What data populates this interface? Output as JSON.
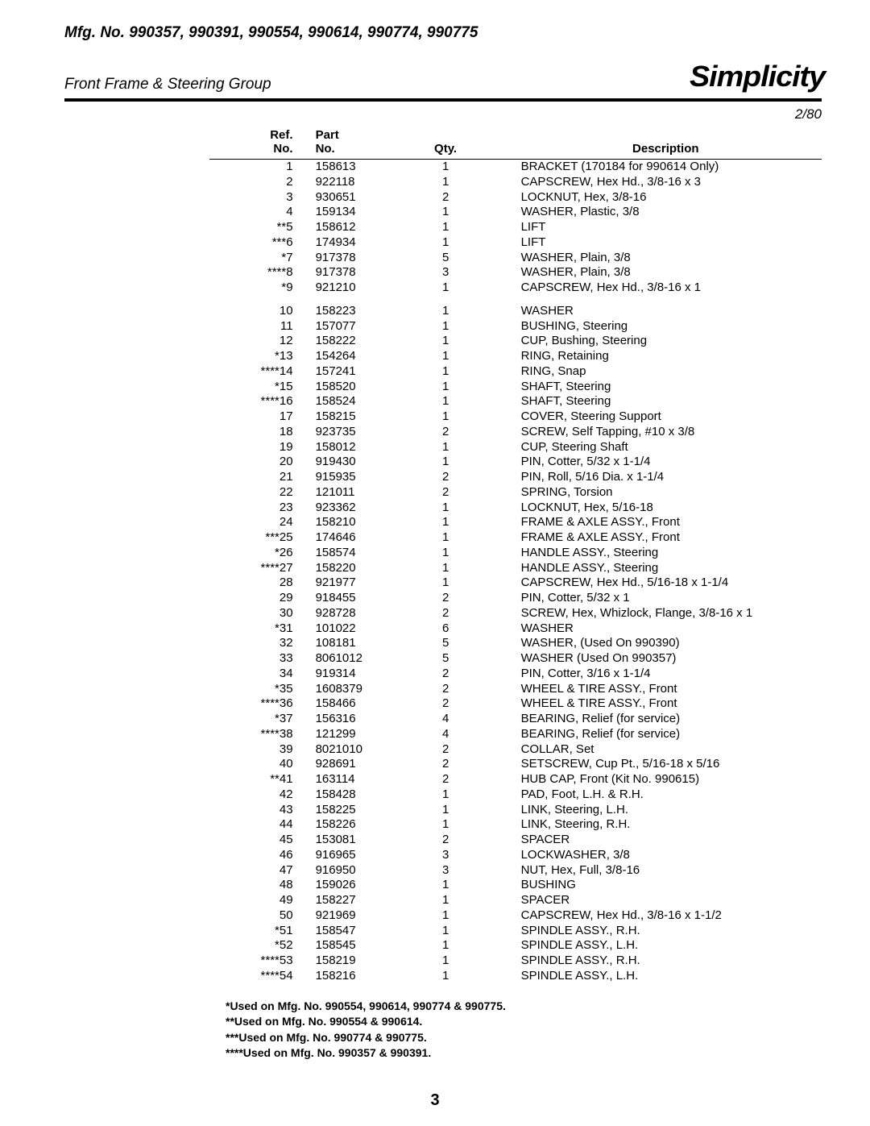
{
  "header": {
    "mfg_line": "Mfg. No. 990357, 990391, 990554, 990614, 990774, 990775",
    "group_title": "Front Frame & Steering Group",
    "brand": "Simplicity",
    "page_code": "2/80"
  },
  "table": {
    "head": {
      "ref1": "Ref.",
      "ref2": "No.",
      "part1": "Part",
      "part2": "No.",
      "qty": "Qty.",
      "desc": "Description"
    },
    "rows": [
      {
        "ref": "1",
        "part": "158613",
        "qty": "1",
        "desc": "BRACKET (170184 for 990614 Only)"
      },
      {
        "ref": "2",
        "part": "922118",
        "qty": "1",
        "desc": "CAPSCREW, Hex Hd., 3/8-16 x 3"
      },
      {
        "ref": "3",
        "part": "930651",
        "qty": "2",
        "desc": "LOCKNUT, Hex, 3/8-16"
      },
      {
        "ref": "4",
        "part": "159134",
        "qty": "1",
        "desc": "WASHER, Plastic, 3/8"
      },
      {
        "ref": "**5",
        "part": "158612",
        "qty": "1",
        "desc": "LIFT"
      },
      {
        "ref": "***6",
        "part": "174934",
        "qty": "1",
        "desc": "LIFT"
      },
      {
        "ref": "*7",
        "part": "917378",
        "qty": "5",
        "desc": "WASHER, Plain, 3/8"
      },
      {
        "ref": "****8",
        "part": "917378",
        "qty": "3",
        "desc": "WASHER, Plain, 3/8"
      },
      {
        "ref": "*9",
        "part": "921210",
        "qty": "1",
        "desc": "CAPSCREW, Hex Hd., 3/8-16 x 1"
      },
      {
        "ref": "10",
        "part": "158223",
        "qty": "1",
        "desc": "WASHER",
        "gap": true
      },
      {
        "ref": "11",
        "part": "157077",
        "qty": "1",
        "desc": "BUSHING, Steering"
      },
      {
        "ref": "12",
        "part": "158222",
        "qty": "1",
        "desc": "CUP, Bushing, Steering"
      },
      {
        "ref": "*13",
        "part": "154264",
        "qty": "1",
        "desc": "RING, Retaining"
      },
      {
        "ref": "****14",
        "part": "157241",
        "qty": "1",
        "desc": "RING, Snap"
      },
      {
        "ref": "*15",
        "part": "158520",
        "qty": "1",
        "desc": "SHAFT, Steering"
      },
      {
        "ref": "****16",
        "part": "158524",
        "qty": "1",
        "desc": "SHAFT, Steering"
      },
      {
        "ref": "17",
        "part": "158215",
        "qty": "1",
        "desc": "COVER, Steering Support"
      },
      {
        "ref": "18",
        "part": "923735",
        "qty": "2",
        "desc": "SCREW, Self Tapping, #10 x 3/8"
      },
      {
        "ref": "19",
        "part": "158012",
        "qty": "1",
        "desc": "CUP, Steering Shaft"
      },
      {
        "ref": "20",
        "part": "919430",
        "qty": "1",
        "desc": "PIN, Cotter, 5/32 x 1-1/4"
      },
      {
        "ref": "21",
        "part": "915935",
        "qty": "2",
        "desc": "PIN, Roll, 5/16 Dia. x 1-1/4"
      },
      {
        "ref": "22",
        "part": "121011",
        "qty": "2",
        "desc": "SPRING, Torsion"
      },
      {
        "ref": "23",
        "part": "923362",
        "qty": "1",
        "desc": "LOCKNUT, Hex, 5/16-18"
      },
      {
        "ref": "24",
        "part": "158210",
        "qty": "1",
        "desc": "FRAME & AXLE ASSY., Front"
      },
      {
        "ref": "***25",
        "part": "174646",
        "qty": "1",
        "desc": "FRAME & AXLE ASSY., Front"
      },
      {
        "ref": "*26",
        "part": "158574",
        "qty": "1",
        "desc": "HANDLE ASSY., Steering"
      },
      {
        "ref": "****27",
        "part": "158220",
        "qty": "1",
        "desc": "HANDLE ASSY., Steering"
      },
      {
        "ref": "28",
        "part": "921977",
        "qty": "1",
        "desc": "CAPSCREW, Hex Hd., 5/16-18 x 1-1/4"
      },
      {
        "ref": "29",
        "part": "918455",
        "qty": "2",
        "desc": "PIN, Cotter, 5/32 x 1"
      },
      {
        "ref": "30",
        "part": "928728",
        "qty": "2",
        "desc": "SCREW, Hex, Whizlock, Flange, 3/8-16 x 1"
      },
      {
        "ref": "*31",
        "part": "101022",
        "qty": "6",
        "desc": "WASHER"
      },
      {
        "ref": "32",
        "part": "108181",
        "qty": "5",
        "desc": "WASHER, (Used On 990390)"
      },
      {
        "ref": "33",
        "part": "8061012",
        "qty": "5",
        "desc": "WASHER (Used On 990357)"
      },
      {
        "ref": "34",
        "part": "919314",
        "qty": "2",
        "desc": "PIN, Cotter, 3/16 x 1-1/4"
      },
      {
        "ref": "*35",
        "part": "1608379",
        "qty": "2",
        "desc": "WHEEL & TIRE ASSY., Front"
      },
      {
        "ref": "****36",
        "part": "158466",
        "qty": "2",
        "desc": "WHEEL & TIRE ASSY., Front"
      },
      {
        "ref": "*37",
        "part": "156316",
        "qty": "4",
        "desc": "BEARING, Relief (for service)"
      },
      {
        "ref": "****38",
        "part": "121299",
        "qty": "4",
        "desc": "BEARING, Relief (for service)"
      },
      {
        "ref": "39",
        "part": "8021010",
        "qty": "2",
        "desc": "COLLAR, Set"
      },
      {
        "ref": "40",
        "part": "928691",
        "qty": "2",
        "desc": "SETSCREW, Cup Pt., 5/16-18 x 5/16"
      },
      {
        "ref": "**41",
        "part": "163114",
        "qty": "2",
        "desc": "HUB CAP, Front (Kit No. 990615)"
      },
      {
        "ref": "42",
        "part": "158428",
        "qty": "1",
        "desc": "PAD, Foot, L.H. & R.H."
      },
      {
        "ref": "43",
        "part": "158225",
        "qty": "1",
        "desc": "LINK, Steering, L.H."
      },
      {
        "ref": "44",
        "part": "158226",
        "qty": "1",
        "desc": "LINK, Steering, R.H."
      },
      {
        "ref": "45",
        "part": "153081",
        "qty": "2",
        "desc": "SPACER"
      },
      {
        "ref": "46",
        "part": "916965",
        "qty": "3",
        "desc": "LOCKWASHER, 3/8"
      },
      {
        "ref": "47",
        "part": "916950",
        "qty": "3",
        "desc": "NUT, Hex, Full, 3/8-16"
      },
      {
        "ref": "48",
        "part": "159026",
        "qty": "1",
        "desc": "BUSHING"
      },
      {
        "ref": "49",
        "part": "158227",
        "qty": "1",
        "desc": "SPACER"
      },
      {
        "ref": "50",
        "part": "921969",
        "qty": "1",
        "desc": "CAPSCREW, Hex Hd., 3/8-16 x 1-1/2"
      },
      {
        "ref": "*51",
        "part": "158547",
        "qty": "1",
        "desc": "SPINDLE ASSY., R.H."
      },
      {
        "ref": "*52",
        "part": "158545",
        "qty": "1",
        "desc": "SPINDLE ASSY., L.H."
      },
      {
        "ref": "****53",
        "part": "158219",
        "qty": "1",
        "desc": "SPINDLE ASSY., R.H."
      },
      {
        "ref": "****54",
        "part": "158216",
        "qty": "1",
        "desc": "SPINDLE ASSY., L.H."
      }
    ]
  },
  "footnotes": [
    "*Used on Mfg. No. 990554, 990614, 990774 & 990775.",
    "**Used on Mfg. No. 990554 & 990614.",
    "***Used on Mfg. No. 990774 & 990775.",
    "****Used on Mfg. No. 990357 & 990391."
  ],
  "page_number": "3"
}
